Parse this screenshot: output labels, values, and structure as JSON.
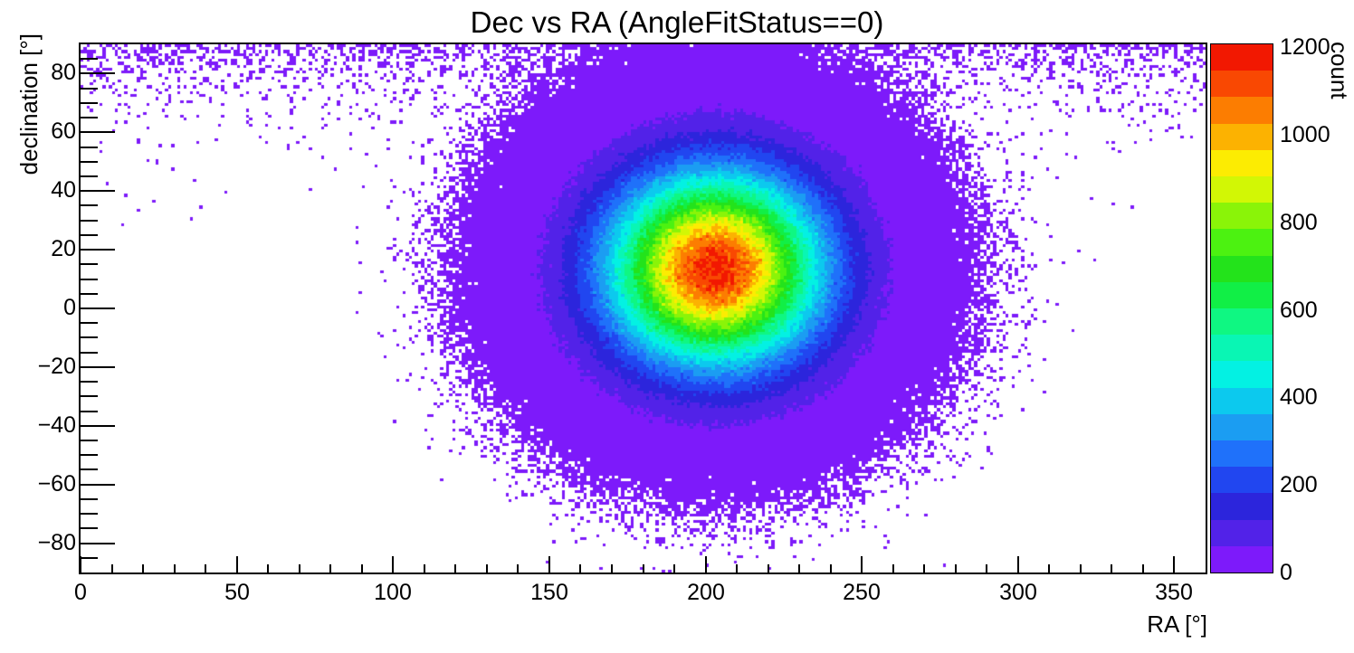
{
  "page": {
    "background": "#ffffff"
  },
  "chart_data": {
    "type": "heatmap",
    "title": "Dec vs RA (AngleFitStatus==0)",
    "xlabel": "RA [°]",
    "ylabel": "declination [°]",
    "zlabel": "count",
    "x_range": [
      0,
      360
    ],
    "y_range": [
      -90,
      90
    ],
    "z_range": [
      0,
      1207
    ],
    "grid": false,
    "n_contours": 20,
    "x_ticks": [
      {
        "v": 0,
        "label": "0"
      },
      {
        "v": 50,
        "label": "50"
      },
      {
        "v": 100,
        "label": "100"
      },
      {
        "v": 150,
        "label": "150"
      },
      {
        "v": 200,
        "label": "200"
      },
      {
        "v": 250,
        "label": "250"
      },
      {
        "v": 300,
        "label": "300"
      },
      {
        "v": 350,
        "label": "350"
      }
    ],
    "x_minor_step": 10,
    "y_ticks": [
      {
        "v": -80,
        "label": "−80"
      },
      {
        "v": -60,
        "label": "−60"
      },
      {
        "v": -40,
        "label": "−40"
      },
      {
        "v": -20,
        "label": "−20"
      },
      {
        "v": 0,
        "label": "0"
      },
      {
        "v": 20,
        "label": "20"
      },
      {
        "v": 40,
        "label": "40"
      },
      {
        "v": 60,
        "label": "60"
      },
      {
        "v": 80,
        "label": "80"
      }
    ],
    "y_minor_step": 5,
    "z_ticks": [
      {
        "v": 0,
        "label": "0"
      },
      {
        "v": 200,
        "label": "200"
      },
      {
        "v": 400,
        "label": "400"
      },
      {
        "v": 600,
        "label": "600"
      },
      {
        "v": 800,
        "label": "800"
      },
      {
        "v": 1000,
        "label": "1000"
      },
      {
        "v": 1200,
        "label": "1200"
      }
    ],
    "palette": [
      "#7d1afa",
      "#5222e8",
      "#2c25dc",
      "#2146f0",
      "#1f71fa",
      "#1b9df2",
      "#0cc9ee",
      "#03f1e3",
      "#09f6b4",
      "#0ff782",
      "#11ef46",
      "#23e31b",
      "#4cf211",
      "#8af408",
      "#d2f705",
      "#fcec02",
      "#fcb201",
      "#fc7d01",
      "#f94802",
      "#f21801"
    ],
    "bins": {
      "nx": 360,
      "ny": 180,
      "bin_width_deg": 1,
      "bin_height_deg": 1
    },
    "distribution": {
      "description": "Dense 2D Gaussian peak of event counts over a sparse background that rises toward the celestial pole (dec +90), empty in the lower corners",
      "center_ra_deg": 203,
      "center_dec_deg": 13.5,
      "sigma_ra_deg": 23,
      "sigma_dec_deg": 22,
      "peak_count": 1170,
      "pole_background_amplitude": 0.7,
      "pole_background_scale_deg": 10,
      "seed": 1234567
    }
  }
}
